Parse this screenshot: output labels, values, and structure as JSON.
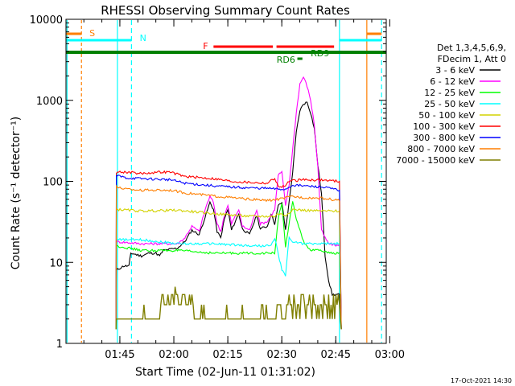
{
  "chart_data": {
    "type": "line",
    "title": "RHESSI Observing Summary Count Rates",
    "xlabel": "Start Time (02-Jun-11 01:31:02)",
    "ylabel": "Count Rate (s⁻¹ detector⁻¹)",
    "y_scale": "log",
    "ylim": [
      1,
      10000
    ],
    "xlim_minutes_after_start": [
      -1,
      88
    ],
    "x_ticks": [
      "01:45",
      "02:00",
      "02:15",
      "02:30",
      "02:45",
      "03:00"
    ],
    "y_ticks": [
      "1",
      "10",
      "100",
      "1000",
      "10000"
    ],
    "legend_header": [
      "Det 1,3,4,5,6,9,",
      "FDecim 1, Att 0"
    ],
    "legend_placement": "right",
    "timestamp": "17-Oct-2021 14:30",
    "series": [
      {
        "name": "3 - 6 keV",
        "color": "#000000",
        "points": [
          [
            12.9,
            1.5
          ],
          [
            13,
            8
          ],
          [
            15,
            9
          ],
          [
            16.5,
            9
          ],
          [
            17,
            13
          ],
          [
            20,
            12
          ],
          [
            22,
            13
          ],
          [
            24,
            13
          ],
          [
            25,
            12
          ],
          [
            26,
            14
          ],
          [
            30,
            15
          ],
          [
            32,
            18
          ],
          [
            34,
            25
          ],
          [
            36,
            22
          ],
          [
            38,
            40
          ],
          [
            39,
            55
          ],
          [
            40,
            45
          ],
          [
            41,
            24
          ],
          [
            42,
            20
          ],
          [
            43,
            34
          ],
          [
            44,
            45
          ],
          [
            45,
            25
          ],
          [
            47,
            40
          ],
          [
            48,
            26
          ],
          [
            50,
            22
          ],
          [
            52,
            38
          ],
          [
            53,
            26
          ],
          [
            55,
            28
          ],
          [
            56,
            40
          ],
          [
            57,
            30
          ],
          [
            58,
            50
          ],
          [
            59,
            55
          ],
          [
            60,
            25
          ],
          [
            61,
            55
          ],
          [
            62,
            130
          ],
          [
            63,
            400
          ],
          [
            64,
            750
          ],
          [
            65,
            900
          ],
          [
            66,
            950
          ],
          [
            67,
            700
          ],
          [
            68,
            450
          ],
          [
            69,
            160
          ],
          [
            70,
            70
          ],
          [
            71,
            12
          ],
          [
            72,
            6
          ],
          [
            73,
            4
          ],
          [
            75,
            4
          ],
          [
            75.5,
            1.5
          ]
        ]
      },
      {
        "name": "6 - 12 keV",
        "color": "#ff00ff",
        "points": [
          [
            12.9,
            1.5
          ],
          [
            13,
            18
          ],
          [
            20,
            17
          ],
          [
            30,
            17
          ],
          [
            32,
            20
          ],
          [
            34,
            28
          ],
          [
            36,
            24
          ],
          [
            38,
            50
          ],
          [
            39,
            65
          ],
          [
            40,
            55
          ],
          [
            41,
            30
          ],
          [
            42,
            24
          ],
          [
            43,
            38
          ],
          [
            44,
            50
          ],
          [
            45,
            30
          ],
          [
            47,
            45
          ],
          [
            48,
            28
          ],
          [
            50,
            25
          ],
          [
            52,
            45
          ],
          [
            53,
            30
          ],
          [
            55,
            32
          ],
          [
            57,
            45
          ],
          [
            58,
            120
          ],
          [
            59,
            130
          ],
          [
            60,
            50
          ],
          [
            61,
            90
          ],
          [
            62,
            250
          ],
          [
            63,
            700
          ],
          [
            64,
            1600
          ],
          [
            65,
            1950
          ],
          [
            66,
            1500
          ],
          [
            67,
            1000
          ],
          [
            68,
            500
          ],
          [
            69,
            150
          ],
          [
            70,
            25
          ],
          [
            71,
            20
          ],
          [
            72,
            17
          ],
          [
            75,
            16
          ],
          [
            75.5,
            1.5
          ]
        ]
      },
      {
        "name": "12 - 25 keV",
        "color": "#00ff00",
        "points": [
          [
            12.9,
            1.5
          ],
          [
            13,
            16
          ],
          [
            20,
            14
          ],
          [
            30,
            14
          ],
          [
            40,
            13
          ],
          [
            50,
            13
          ],
          [
            57,
            13
          ],
          [
            58,
            35
          ],
          [
            59,
            55
          ],
          [
            60,
            15
          ],
          [
            61,
            30
          ],
          [
            62,
            55
          ],
          [
            63,
            35
          ],
          [
            64,
            25
          ],
          [
            65,
            18
          ],
          [
            67,
            14
          ],
          [
            70,
            14
          ],
          [
            72,
            13
          ],
          [
            75,
            13
          ],
          [
            75.5,
            1.5
          ]
        ]
      },
      {
        "name": "25 - 50 keV",
        "color": "#00ffff",
        "points": [
          [
            12.9,
            1.5
          ],
          [
            13,
            19
          ],
          [
            20,
            19
          ],
          [
            30,
            17
          ],
          [
            40,
            17
          ],
          [
            50,
            16
          ],
          [
            56,
            16
          ],
          [
            57,
            20
          ],
          [
            59,
            8
          ],
          [
            60,
            7
          ],
          [
            61,
            20
          ],
          [
            62,
            18
          ],
          [
            65,
            17
          ],
          [
            70,
            17
          ],
          [
            75,
            17
          ],
          [
            75.5,
            1.5
          ]
        ]
      },
      {
        "name": "50 - 100 keV",
        "color": "#d2d200",
        "points": [
          [
            12.9,
            1.5
          ],
          [
            13,
            45
          ],
          [
            20,
            43
          ],
          [
            30,
            44
          ],
          [
            40,
            40
          ],
          [
            50,
            37
          ],
          [
            57,
            37
          ],
          [
            58,
            40
          ],
          [
            60,
            38
          ],
          [
            62,
            45
          ],
          [
            65,
            44
          ],
          [
            70,
            43
          ],
          [
            75,
            43
          ],
          [
            75.5,
            1.5
          ]
        ]
      },
      {
        "name": "100 - 300 keV",
        "color": "#ff0000",
        "points": [
          [
            12.9,
            1.5
          ],
          [
            13,
            130
          ],
          [
            16,
            130
          ],
          [
            20,
            125
          ],
          [
            25,
            130
          ],
          [
            28,
            130
          ],
          [
            32,
            115
          ],
          [
            40,
            108
          ],
          [
            45,
            100
          ],
          [
            50,
            97
          ],
          [
            55,
            95
          ],
          [
            57,
            110
          ],
          [
            58,
            85
          ],
          [
            60,
            88
          ],
          [
            61,
            100
          ],
          [
            65,
            105
          ],
          [
            70,
            104
          ],
          [
            75,
            100
          ],
          [
            75.5,
            1.5
          ]
        ]
      },
      {
        "name": "300 - 800 keV",
        "color": "#0000ff",
        "points": [
          [
            12.9,
            1.5
          ],
          [
            13,
            118
          ],
          [
            16,
            110
          ],
          [
            20,
            108
          ],
          [
            28,
            105
          ],
          [
            32,
            95
          ],
          [
            40,
            88
          ],
          [
            45,
            85
          ],
          [
            50,
            83
          ],
          [
            55,
            82
          ],
          [
            58,
            80
          ],
          [
            60,
            80
          ],
          [
            62,
            90
          ],
          [
            65,
            88
          ],
          [
            70,
            85
          ],
          [
            75,
            78
          ],
          [
            75.5,
            1.5
          ]
        ]
      },
      {
        "name": "800 - 7000 keV",
        "color": "#ff7f00",
        "points": [
          [
            12.9,
            1.5
          ],
          [
            13,
            85
          ],
          [
            16,
            80
          ],
          [
            20,
            78
          ],
          [
            28,
            78
          ],
          [
            32,
            72
          ],
          [
            40,
            66
          ],
          [
            45,
            63
          ],
          [
            50,
            60
          ],
          [
            55,
            58
          ],
          [
            58,
            60
          ],
          [
            62,
            65
          ],
          [
            65,
            63
          ],
          [
            70,
            62
          ],
          [
            75,
            58
          ],
          [
            75.5,
            1.5
          ]
        ]
      },
      {
        "name": "7000 - 15000 keV",
        "color": "#7f7f00",
        "points": [
          [
            12.9,
            1.5
          ],
          [
            13,
            2
          ],
          [
            20,
            2
          ],
          [
            24,
            2
          ],
          [
            25,
            3
          ],
          [
            30,
            4
          ],
          [
            34,
            3
          ],
          [
            36,
            2
          ],
          [
            41,
            2
          ],
          [
            43,
            2
          ],
          [
            46,
            2
          ],
          [
            50,
            2
          ],
          [
            55,
            2
          ],
          [
            57,
            2
          ],
          [
            58,
            2.5
          ],
          [
            60,
            3
          ],
          [
            64,
            3
          ],
          [
            68,
            3
          ],
          [
            71,
            3
          ],
          [
            75,
            3
          ],
          [
            75.5,
            1.5
          ]
        ]
      }
    ],
    "annotations": [
      "S",
      "N",
      "F",
      "RD6",
      "RD9"
    ]
  }
}
